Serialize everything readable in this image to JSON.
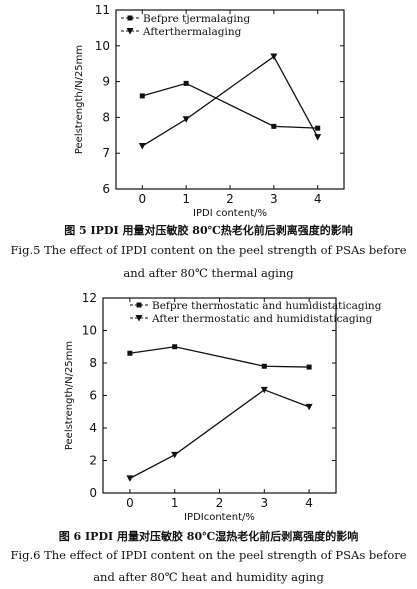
{
  "figure5": {
    "caption_cn": "图 5 IPDI 用量对压敏胶 80℃热老化前后剥离强度的影响",
    "caption_en_line1": "Fig.5 The effect of IPDI content on the peel strength of PSAs before",
    "caption_en_line2": "and after 80℃ thermal aging"
  },
  "figure6": {
    "caption_cn": "图 6 IPDI 用量对压敏胶 80℃湿热老化前后剥离强度的影响",
    "caption_en_line1": "Fig.6 The effect of IPDI content on the peel strength of PSAs before",
    "caption_en_line2": "and after 80℃ heat and humidity aging"
  },
  "chart_data": [
    {
      "type": "line",
      "title": "",
      "xlabel": "IPDI content/%",
      "ylabel": "Peelstrength/N/25mm",
      "x": [
        0,
        1,
        3,
        4
      ],
      "xticks": [
        0,
        1,
        2,
        3,
        4
      ],
      "xlim": [
        -0.6,
        4.6
      ],
      "ylim": [
        6,
        11
      ],
      "yticks": [
        6,
        7,
        8,
        9,
        10,
        11
      ],
      "legend_position": "top-left",
      "series": [
        {
          "name": "Befpre tjermalaging",
          "marker": "square",
          "values": [
            8.6,
            8.95,
            7.75,
            7.7
          ]
        },
        {
          "name": "Afterthermalaging",
          "marker": "triangle-down",
          "values": [
            7.2,
            7.95,
            9.7,
            7.45
          ]
        }
      ]
    },
    {
      "type": "line",
      "title": "",
      "xlabel": "IPDIcontent/%",
      "ylabel": "Peelstrength/N/25mm",
      "x": [
        0,
        1,
        3,
        4
      ],
      "xticks": [
        0,
        1,
        2,
        3,
        4
      ],
      "xlim": [
        -0.6,
        4.6
      ],
      "ylim": [
        0,
        12
      ],
      "yticks": [
        0,
        2,
        4,
        6,
        8,
        10,
        12
      ],
      "legend_position": "top-right",
      "series": [
        {
          "name": "Befpre thermostatic and humidistaticaging",
          "marker": "square",
          "values": [
            8.6,
            9.0,
            7.8,
            7.75
          ]
        },
        {
          "name": "After thermostatic and humidistaticaging",
          "marker": "triangle-down",
          "values": [
            0.9,
            2.35,
            6.35,
            5.3
          ]
        }
      ]
    }
  ]
}
